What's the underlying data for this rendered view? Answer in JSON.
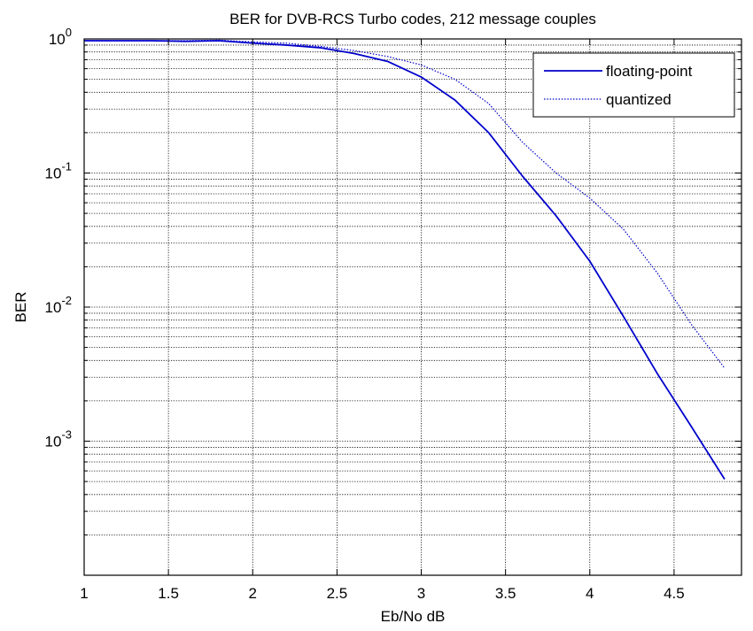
{
  "chart_data": {
    "type": "line",
    "title": "BER for DVB-RCS Turbo codes, 212 message couples",
    "xlabel": "Eb/No dB",
    "ylabel": "BER",
    "xlim": [
      1,
      4.9
    ],
    "ylim": [
      0.0001,
      1
    ],
    "yscale": "log",
    "grid": true,
    "legend_position": "top-right",
    "x_ticks": [
      1,
      1.5,
      2,
      2.5,
      3,
      3.5,
      4,
      4.5
    ],
    "x_tick_labels": [
      "1",
      "1.5",
      "2",
      "2.5",
      "3",
      "3.5",
      "4",
      "4.5"
    ],
    "y_ticks": [
      {
        "value": 1,
        "base": "10",
        "exp": "0"
      },
      {
        "value": 0.1,
        "base": "10",
        "exp": "-1"
      },
      {
        "value": 0.01,
        "base": "10",
        "exp": "-2"
      },
      {
        "value": 0.001,
        "base": "10",
        "exp": "-3"
      }
    ],
    "series": [
      {
        "name": "floating-point",
        "color": "#0000cc",
        "style": "solid",
        "x": [
          1.0,
          1.2,
          1.4,
          1.6,
          1.8,
          2.0,
          2.2,
          2.4,
          2.6,
          2.8,
          3.0,
          3.2,
          3.4,
          3.6,
          3.8,
          4.0,
          4.2,
          4.4,
          4.6,
          4.8
        ],
        "y": [
          0.97,
          0.97,
          0.97,
          0.96,
          0.97,
          0.93,
          0.9,
          0.86,
          0.78,
          0.68,
          0.52,
          0.35,
          0.2,
          0.095,
          0.048,
          0.022,
          0.0085,
          0.0032,
          0.0013,
          0.00052
        ]
      },
      {
        "name": "quantized",
        "color": "#0000cc",
        "style": "dotted",
        "x": [
          1.0,
          1.2,
          1.4,
          1.6,
          1.8,
          2.0,
          2.2,
          2.4,
          2.6,
          2.8,
          3.0,
          3.2,
          3.4,
          3.6,
          3.8,
          4.0,
          4.2,
          4.4,
          4.6,
          4.8
        ],
        "y": [
          0.97,
          0.97,
          0.97,
          0.97,
          0.98,
          0.95,
          0.93,
          0.88,
          0.82,
          0.74,
          0.64,
          0.5,
          0.33,
          0.17,
          0.1,
          0.065,
          0.038,
          0.018,
          0.0075,
          0.0035
        ]
      }
    ]
  }
}
